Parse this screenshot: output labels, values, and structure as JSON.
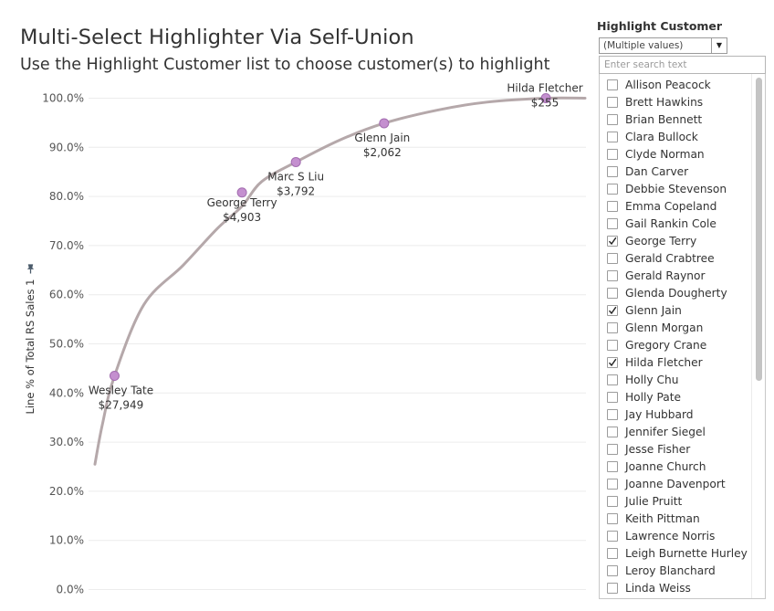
{
  "title": "Multi-Select Highlighter Via Self-Union",
  "subtitle": "Use the Highlight Customer list to choose customer(s) to highlight",
  "chart_data": {
    "type": "line",
    "ylabel": "Line % of Total RS Sales 1",
    "ylim": [
      0,
      100
    ],
    "y_ticks": [
      "0.0%",
      "10.0%",
      "20.0%",
      "30.0%",
      "40.0%",
      "50.0%",
      "60.0%",
      "70.0%",
      "80.0%",
      "90.0%",
      "100.0%"
    ],
    "grid": true,
    "curve": [
      {
        "t": 0.0,
        "y": 25.5
      },
      {
        "t": 0.02,
        "y": 33.0
      },
      {
        "t": 0.04,
        "y": 43.5
      },
      {
        "t": 0.1,
        "y": 58.0
      },
      {
        "t": 0.2,
        "y": 68.0
      },
      {
        "t": 0.3,
        "y": 76.5
      },
      {
        "t": 0.38,
        "y": 80.5
      },
      {
        "t": 0.41,
        "y": 83.5
      },
      {
        "t": 0.4,
        "y": 85.5
      },
      {
        "t": 0.48,
        "y": 87.0
      },
      {
        "t": 0.58,
        "y": 92.5
      },
      {
        "t": 0.7,
        "y": 97.0
      },
      {
        "t": 0.85,
        "y": 99.3
      },
      {
        "t": 0.92,
        "y": 100.0
      },
      {
        "t": 1.0,
        "y": 100.0
      }
    ],
    "highlights": [
      {
        "name": "Wesley Tate",
        "value": "$27,949",
        "t": 0.04,
        "y": 43.5
      },
      {
        "name": "George Terry",
        "value": "$4,903",
        "t": 0.3,
        "y": 80.8
      },
      {
        "name": "Marc S Liu",
        "value": "$3,792",
        "t": 0.41,
        "y": 87.0
      },
      {
        "name": "Glenn Jain",
        "value": "$2,062",
        "t": 0.59,
        "y": 94.9
      },
      {
        "name": "Hilda Fletcher",
        "value": "$255",
        "t": 0.92,
        "y": 100.0
      }
    ],
    "colors": {
      "line": "#b5a8aa",
      "marker": "#c48fcf",
      "marker_stroke": "#a36db0",
      "grid": "#ececec"
    }
  },
  "filter": {
    "title": "Highlight Customer",
    "selected": "(Multiple values)",
    "search_placeholder": "Enter search text",
    "items": [
      {
        "label": "Allison Peacock",
        "checked": false
      },
      {
        "label": "Brett Hawkins",
        "checked": false
      },
      {
        "label": "Brian Bennett",
        "checked": false
      },
      {
        "label": "Clara Bullock",
        "checked": false
      },
      {
        "label": "Clyde Norman",
        "checked": false
      },
      {
        "label": "Dan Carver",
        "checked": false
      },
      {
        "label": "Debbie Stevenson",
        "checked": false
      },
      {
        "label": "Emma Copeland",
        "checked": false
      },
      {
        "label": "Gail Rankin Cole",
        "checked": false
      },
      {
        "label": "George Terry",
        "checked": true
      },
      {
        "label": "Gerald Crabtree",
        "checked": false
      },
      {
        "label": "Gerald Raynor",
        "checked": false
      },
      {
        "label": "Glenda Dougherty",
        "checked": false
      },
      {
        "label": "Glenn Jain",
        "checked": true
      },
      {
        "label": "Glenn Morgan",
        "checked": false
      },
      {
        "label": "Gregory Crane",
        "checked": false
      },
      {
        "label": "Hilda Fletcher",
        "checked": true
      },
      {
        "label": "Holly Chu",
        "checked": false
      },
      {
        "label": "Holly Pate",
        "checked": false
      },
      {
        "label": "Jay Hubbard",
        "checked": false
      },
      {
        "label": "Jennifer Siegel",
        "checked": false
      },
      {
        "label": "Jesse Fisher",
        "checked": false
      },
      {
        "label": "Joanne Church",
        "checked": false
      },
      {
        "label": "Joanne Davenport",
        "checked": false
      },
      {
        "label": "Julie Pruitt",
        "checked": false
      },
      {
        "label": "Keith Pittman",
        "checked": false
      },
      {
        "label": "Lawrence Norris",
        "checked": false
      },
      {
        "label": "Leigh Burnette Hurley",
        "checked": false
      },
      {
        "label": "Leroy Blanchard",
        "checked": false
      },
      {
        "label": "Linda Weiss",
        "checked": false
      }
    ]
  }
}
